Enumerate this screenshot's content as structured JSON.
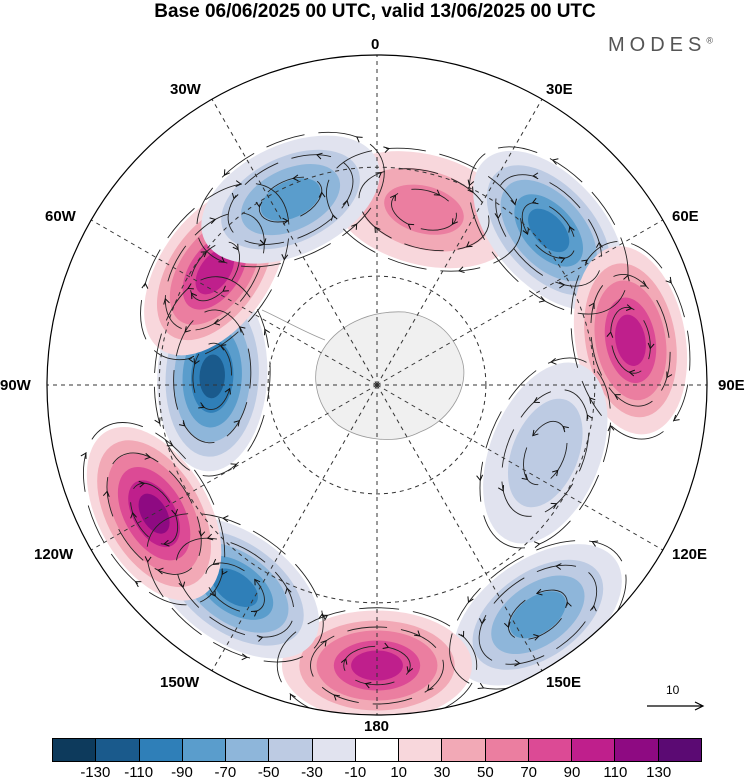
{
  "title": "Base 06/06/2025 00 UTC, valid 13/06/2025 00 UTC",
  "brand": "MODES",
  "brand_mark": "®",
  "longitude_labels": {
    "n": "0",
    "ne": "30E",
    "e1": "60E",
    "e": "90E",
    "se1": "120E",
    "se": "150E",
    "s": "180",
    "sw": "150W",
    "sw1": "120W",
    "w": "90W",
    "nw1": "60W",
    "nw": "30W"
  },
  "reference_vector": {
    "value": "10"
  },
  "colorbar": {
    "colors": [
      "#0d3a5c",
      "#1a5a8c",
      "#2f7fb8",
      "#5a9dcc",
      "#8eb6da",
      "#bdcbe3",
      "#e1e3ef",
      "#ffffff",
      "#f8d7dc",
      "#f2a9b6",
      "#eb7ea0",
      "#dc4a95",
      "#bf1f8c",
      "#8e0a82",
      "#5b0a73"
    ],
    "ticks": [
      "-130",
      "-110",
      "-90",
      "-70",
      "-50",
      "-30",
      "-10",
      "10",
      "30",
      "50",
      "70",
      "90",
      "110",
      "130"
    ]
  },
  "anomaly_centers": [
    {
      "lon": 15,
      "lat_ring": 0.55,
      "value": 60
    },
    {
      "lon": 48,
      "lat_ring": 0.7,
      "value": -100
    },
    {
      "lon": 80,
      "lat_ring": 0.78,
      "value": 110
    },
    {
      "lon": 112,
      "lat_ring": 0.55,
      "value": -50
    },
    {
      "lon": 145,
      "lat_ring": 0.85,
      "value": -80
    },
    {
      "lon": 180,
      "lat_ring": 0.85,
      "value": 115
    },
    {
      "lon": -145,
      "lat_ring": 0.75,
      "value": -100
    },
    {
      "lon": -120,
      "lat_ring": 0.78,
      "value": 120
    },
    {
      "lon": -87,
      "lat_ring": 0.5,
      "value": -120
    },
    {
      "lon": -55,
      "lat_ring": 0.6,
      "value": 115
    },
    {
      "lon": -25,
      "lat_ring": 0.62,
      "value": -90
    }
  ]
}
